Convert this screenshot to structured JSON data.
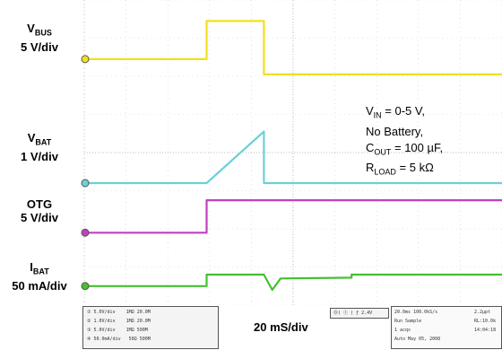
{
  "channels": [
    {
      "id": "vbus",
      "name_main": "V",
      "name_sub": "BUS",
      "scale": "5 V/div",
      "color": "#f0e020"
    },
    {
      "id": "vbat",
      "name_main": "V",
      "name_sub": "BAT",
      "scale": "1 V/div",
      "color": "#6cd0d8"
    },
    {
      "id": "otg",
      "name_main": "OTG",
      "name_sub": "",
      "scale": "5 V/div",
      "color": "#c040c0"
    },
    {
      "id": "ibat",
      "name_main": "I",
      "name_sub": "BAT",
      "scale": "50 mA/div",
      "color": "#44c030"
    }
  ],
  "conditions": {
    "vin_main": "V",
    "vin_sub": "IN",
    "vin_rest": " = 0-5 V,",
    "line2": "No Battery,",
    "cout_main": "C",
    "cout_sub": "OUT",
    "cout_rest": " = 100 µF,",
    "rload_main": "R",
    "rload_sub": "LOAD",
    "rload_rest": "  = 5 kΩ"
  },
  "timebase": "20 mS/div",
  "status_bar": {
    "ch_scales": [
      "5.0V/div",
      "1.0V/div",
      "5.0V/div",
      "50.0mA/div"
    ],
    "ch_coupling": [
      "1MΩ",
      "1MΩ",
      "1MΩ",
      "50Ω"
    ],
    "ch_bw": [
      "20.0M",
      "20.0M",
      "500M",
      "500M"
    ],
    "trigger": "2.4V",
    "acq": [
      "20.0ms  100.0kS/s",
      "Run     Sample",
      "1 acqs",
      "Auto   May 05, 2008"
    ],
    "acq_right": [
      "2.2μpt",
      "",
      "RL:10.0k",
      "14:04:18"
    ]
  },
  "chart_data": {
    "type": "line",
    "title": "",
    "xlabel": "20 mS/div",
    "x_unit": "div",
    "xlim": [
      0,
      10
    ],
    "ylim": [
      -4,
      4
    ],
    "grid": true,
    "series": [
      {
        "name": "VBUS",
        "points": [
          [
            0,
            2.45
          ],
          [
            2.93,
            2.45
          ],
          [
            2.93,
            3.45
          ],
          [
            4.3,
            3.45
          ],
          [
            4.3,
            2.05
          ],
          [
            10,
            2.05
          ]
        ]
      },
      {
        "name": "VBAT",
        "points": [
          [
            0,
            -0.8
          ],
          [
            2.93,
            -0.8
          ],
          [
            4.3,
            0.55
          ],
          [
            4.3,
            -0.8
          ],
          [
            10,
            -0.8
          ]
        ]
      },
      {
        "name": "OTG",
        "points": [
          [
            0,
            -2.1
          ],
          [
            2.93,
            -2.1
          ],
          [
            2.93,
            -1.25
          ],
          [
            10,
            -1.25
          ]
        ]
      },
      {
        "name": "IBAT",
        "points": [
          [
            0,
            -3.5
          ],
          [
            2.93,
            -3.5
          ],
          [
            2.93,
            -3.2
          ],
          [
            4.3,
            -3.2
          ],
          [
            4.5,
            -3.6
          ],
          [
            4.7,
            -3.3
          ],
          [
            6.4,
            -3.28
          ],
          [
            6.4,
            -3.2
          ],
          [
            10,
            -3.2
          ]
        ]
      }
    ]
  }
}
